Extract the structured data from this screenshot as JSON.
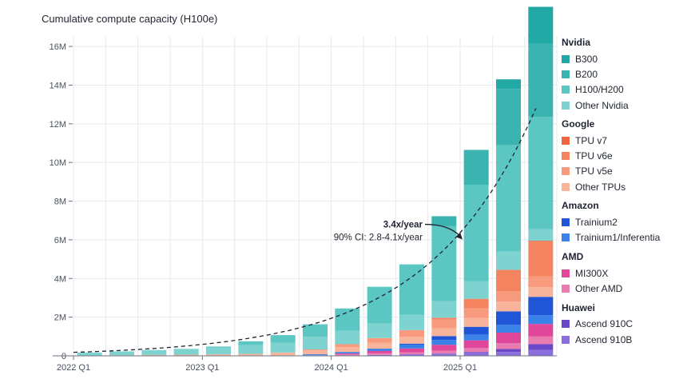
{
  "chart_data": {
    "type": "bar",
    "stacked": true,
    "title": "Cumulative compute capacity (H100e)",
    "y_ticks": [
      "0",
      "2M",
      "4M",
      "6M",
      "8M",
      "10M",
      "12M",
      "14M",
      "16M"
    ],
    "ylim": [
      0,
      16.5
    ],
    "x_ticks": [
      "2022 Q1",
      "2023 Q1",
      "2024 Q1",
      "2025 Q1"
    ],
    "categories": [
      "2022 Q1",
      "2022 Q2",
      "2022 Q3",
      "2022 Q4",
      "2023 Q1",
      "2023 Q2",
      "2023 Q3",
      "2023 Q4",
      "2024 Q1",
      "2024 Q2",
      "2024 Q3",
      "2024 Q4",
      "2025 Q1",
      "2025 Q2",
      "2025 Q3"
    ],
    "series": [
      {
        "name": "Ascend 910B",
        "group": "Huawei",
        "color": "#8a6fdc",
        "values": [
          0,
          0,
          0,
          0,
          0,
          0,
          0,
          0,
          0.02,
          0.05,
          0.08,
          0.12,
          0.15,
          0.2,
          0.3
        ]
      },
      {
        "name": "Ascend 910C",
        "group": "Huawei",
        "color": "#6a49c8",
        "values": [
          0,
          0,
          0,
          0,
          0,
          0,
          0,
          0,
          0,
          0,
          0,
          0,
          0.05,
          0.15,
          0.3
        ]
      },
      {
        "name": "Other AMD",
        "group": "AMD",
        "color": "#e87bb0",
        "values": [
          0,
          0,
          0,
          0,
          0,
          0,
          0,
          0.03,
          0.05,
          0.08,
          0.1,
          0.15,
          0.2,
          0.3,
          0.4
        ]
      },
      {
        "name": "MI300X",
        "group": "AMD",
        "color": "#e0479a",
        "values": [
          0,
          0,
          0,
          0,
          0,
          0,
          0,
          0,
          0.05,
          0.12,
          0.2,
          0.3,
          0.4,
          0.55,
          0.65
        ]
      },
      {
        "name": "Trainium1/Inferentia",
        "group": "Amazon",
        "color": "#3a82e8",
        "values": [
          0,
          0,
          0,
          0,
          0,
          0,
          0.02,
          0.05,
          0.08,
          0.12,
          0.2,
          0.25,
          0.3,
          0.4,
          0.45
        ]
      },
      {
        "name": "Trainium2",
        "group": "Amazon",
        "color": "#1f55d6",
        "values": [
          0,
          0,
          0,
          0,
          0,
          0,
          0,
          0,
          0,
          0,
          0.05,
          0.2,
          0.4,
          0.7,
          0.95
        ]
      },
      {
        "name": "Other TPUs",
        "group": "Google",
        "color": "#f8b49a",
        "values": [
          0.02,
          0.03,
          0.05,
          0.06,
          0.08,
          0.1,
          0.15,
          0.2,
          0.25,
          0.3,
          0.35,
          0.4,
          0.45,
          0.5,
          0.5
        ]
      },
      {
        "name": "TPU v5e",
        "group": "Google",
        "color": "#f79a7e",
        "values": [
          0,
          0,
          0,
          0,
          0,
          0,
          0,
          0.05,
          0.15,
          0.25,
          0.35,
          0.45,
          0.5,
          0.55,
          0.55
        ]
      },
      {
        "name": "TPU v6e",
        "group": "Google",
        "color": "#f4845f",
        "values": [
          0,
          0,
          0,
          0,
          0,
          0,
          0,
          0,
          0,
          0,
          0,
          0.1,
          0.5,
          1.1,
          1.8
        ]
      },
      {
        "name": "TPU v7",
        "group": "Google",
        "color": "#f2643e",
        "values": [
          0,
          0,
          0,
          0,
          0,
          0,
          0,
          0,
          0,
          0,
          0,
          0,
          0,
          0,
          0.05
        ]
      },
      {
        "name": "Other Nvidia",
        "group": "Nvidia",
        "color": "#7ed3d0",
        "values": [
          0.15,
          0.2,
          0.25,
          0.3,
          0.35,
          0.45,
          0.5,
          0.65,
          0.7,
          0.75,
          0.8,
          0.85,
          0.9,
          0.95,
          0.6
        ]
      },
      {
        "name": "H100/H200",
        "group": "Nvidia",
        "color": "#5cc6c3",
        "values": [
          0,
          0,
          0,
          0,
          0.05,
          0.2,
          0.4,
          0.65,
          1.15,
          1.9,
          2.6,
          3.9,
          5.0,
          5.5,
          5.8
        ]
      },
      {
        "name": "B200",
        "group": "Nvidia",
        "color": "#3bb3b0",
        "values": [
          0,
          0,
          0,
          0,
          0,
          0,
          0,
          0,
          0,
          0,
          0,
          0.5,
          1.8,
          2.9,
          3.8
        ]
      },
      {
        "name": "B300",
        "group": "Nvidia",
        "color": "#22a8a5",
        "values": [
          0,
          0,
          0,
          0,
          0,
          0,
          0,
          0,
          0,
          0,
          0,
          0,
          0,
          0.5,
          1.9
        ]
      }
    ],
    "trend": {
      "label": "3.4x/year",
      "ci_label": "90% CI: 2.8-4.1x/year",
      "start_value": 0.18,
      "end_value": 12.8,
      "color": "#1f2430"
    },
    "legend": {
      "position": "right",
      "groups": [
        {
          "title": "Nvidia",
          "items": [
            {
              "label": "B300",
              "color": "#22a8a5"
            },
            {
              "label": "B200",
              "color": "#3bb3b0"
            },
            {
              "label": "H100/H200",
              "color": "#5cc6c3"
            },
            {
              "label": "Other Nvidia",
              "color": "#7ed3d0"
            }
          ]
        },
        {
          "title": "Google",
          "items": [
            {
              "label": "TPU v7",
              "color": "#f2643e"
            },
            {
              "label": "TPU v6e",
              "color": "#f4845f"
            },
            {
              "label": "TPU v5e",
              "color": "#f79a7e"
            },
            {
              "label": "Other TPUs",
              "color": "#f8b49a"
            }
          ]
        },
        {
          "title": "Amazon",
          "items": [
            {
              "label": "Trainium2",
              "color": "#1f55d6"
            },
            {
              "label": "Trainium1/Inferentia",
              "color": "#3a82e8"
            }
          ]
        },
        {
          "title": "AMD",
          "items": [
            {
              "label": "MI300X",
              "color": "#e0479a"
            },
            {
              "label": "Other AMD",
              "color": "#e87bb0"
            }
          ]
        },
        {
          "title": "Huawei",
          "items": [
            {
              "label": "Ascend 910C",
              "color": "#6a49c8"
            },
            {
              "label": "Ascend 910B",
              "color": "#8a6fdc"
            }
          ]
        }
      ]
    },
    "grid": true
  }
}
